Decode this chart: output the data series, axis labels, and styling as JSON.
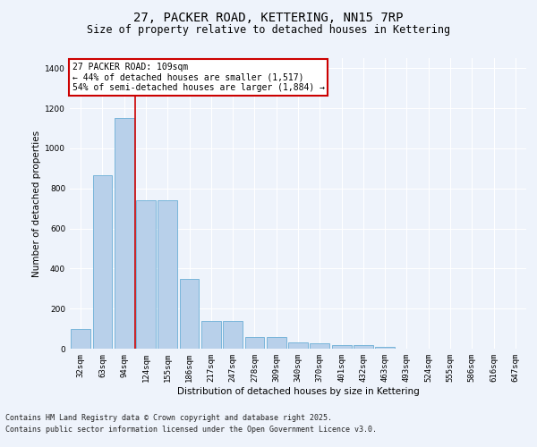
{
  "title1": "27, PACKER ROAD, KETTERING, NN15 7RP",
  "title2": "Size of property relative to detached houses in Kettering",
  "xlabel": "Distribution of detached houses by size in Kettering",
  "ylabel": "Number of detached properties",
  "categories": [
    "32sqm",
    "63sqm",
    "94sqm",
    "124sqm",
    "155sqm",
    "186sqm",
    "217sqm",
    "247sqm",
    "278sqm",
    "309sqm",
    "340sqm",
    "370sqm",
    "401sqm",
    "432sqm",
    "463sqm",
    "493sqm",
    "524sqm",
    "555sqm",
    "586sqm",
    "616sqm",
    "647sqm"
  ],
  "values": [
    100,
    865,
    1150,
    740,
    740,
    350,
    140,
    140,
    60,
    60,
    30,
    25,
    18,
    18,
    10,
    0,
    0,
    0,
    0,
    0,
    0
  ],
  "bar_color": "#b8d0ea",
  "bar_edge_color": "#6aaed6",
  "bg_color": "#eef3fb",
  "grid_color": "#ffffff",
  "annotation_text": "27 PACKER ROAD: 109sqm\n← 44% of detached houses are smaller (1,517)\n54% of semi-detached houses are larger (1,884) →",
  "annotation_box_color": "#ffffff",
  "annotation_box_edge": "#cc0000",
  "vline_x": 2.5,
  "vline_color": "#cc0000",
  "ylim": [
    0,
    1450
  ],
  "yticks": [
    0,
    200,
    400,
    600,
    800,
    1000,
    1200,
    1400
  ],
  "footer1": "Contains HM Land Registry data © Crown copyright and database right 2025.",
  "footer2": "Contains public sector information licensed under the Open Government Licence v3.0.",
  "title_fontsize": 10,
  "subtitle_fontsize": 8.5,
  "label_fontsize": 7.5,
  "tick_fontsize": 6.5,
  "footer_fontsize": 6,
  "annot_fontsize": 7
}
